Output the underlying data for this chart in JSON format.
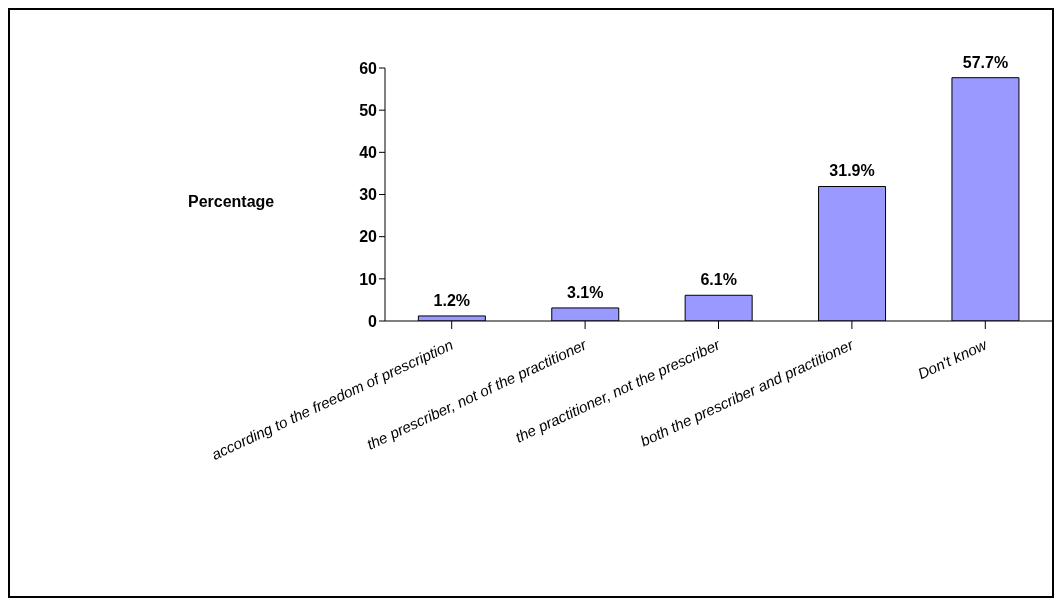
{
  "chart_data": {
    "type": "bar",
    "ylabel": "Percentage",
    "categories": [
      "according to the freedom of prescription",
      "the prescriber, not of the practitioner",
      "the practitioner, not the prescriber",
      "both the prescriber and practitioner",
      "Don't know"
    ],
    "values": [
      1.2,
      3.1,
      6.1,
      31.9,
      57.7
    ],
    "value_labels": [
      "1.2%",
      "3.1%",
      "6.1%",
      "31.9%",
      "57.7%"
    ],
    "color": "#9999ff",
    "ylim": [
      0,
      60
    ],
    "yticks": [
      0,
      10,
      20,
      30,
      40,
      50,
      60
    ],
    "grid": false,
    "legend": false
  }
}
